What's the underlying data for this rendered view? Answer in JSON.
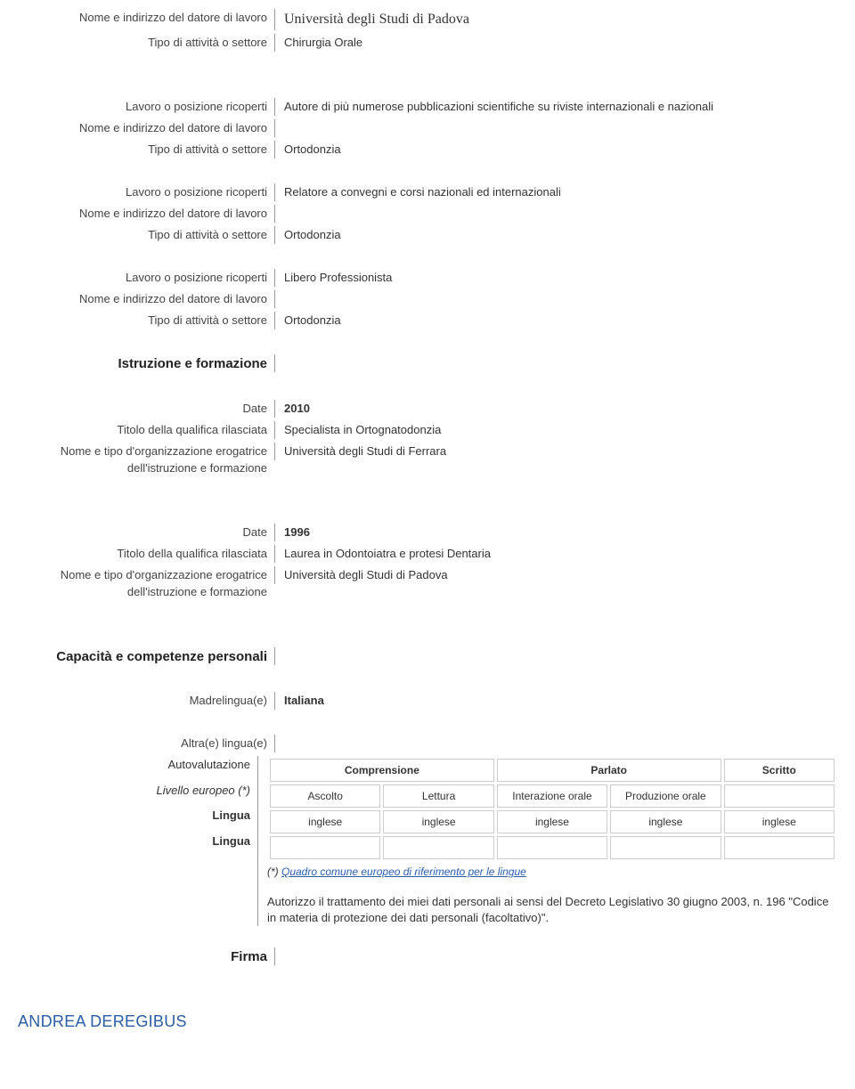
{
  "labels": {
    "employer": "Nome e indirizzo del datore di lavoro",
    "sector": "Tipo di attività o settore",
    "position": "Lavoro o posizione ricoperti",
    "education_section": "Istruzione e formazione",
    "date": "Date",
    "qual_title": "Titolo della qualifica rilasciata",
    "org": "Nome e tipo d'organizzazione erogatrice dell'istruzione e formazione",
    "skills_section": "Capacità e competenze personali",
    "mother_tongue": "Madrelingua(e)",
    "other_lang": "Altra(e) lingua(e)",
    "self_assess": "Autovalutazione",
    "eu_level": "Livello europeo (*)",
    "language": "Lingua",
    "signature": "Firma"
  },
  "top_block": {
    "employer": "Università degli Studi di Padova",
    "sector": "Chirurgia Orale"
  },
  "work": [
    {
      "position": "Autore di più numerose pubblicazioni scientifiche su riviste internazionali e nazionali",
      "employer": "",
      "sector": "Ortodonzia"
    },
    {
      "position": "Relatore a convegni e corsi nazionali ed internazionali",
      "employer": "",
      "sector": "Ortodonzia"
    },
    {
      "position": "Libero Professionista",
      "employer": "",
      "sector": "Ortodonzia"
    }
  ],
  "education": [
    {
      "date": "2010",
      "title": "Specialista in Ortognatodonzia",
      "org": "Università degli Studi di Ferrara"
    },
    {
      "date": "1996",
      "title": "Laurea in Odontoiatra e protesi Dentaria",
      "org": "Università degli Studi di  Padova"
    }
  ],
  "mother_tongue_value": "Italiana",
  "lang_table": {
    "header_groups": [
      "Comprensione",
      "Parlato",
      "Scritto"
    ],
    "sub_headers": [
      "Ascolto",
      "Lettura",
      "Interazione orale",
      "Produzione orale",
      ""
    ],
    "rows": [
      [
        "inglese",
        "inglese",
        "inglese",
        "inglese",
        "inglese"
      ],
      [
        "",
        "",
        "",
        "",
        ""
      ]
    ]
  },
  "footnote_prefix": "(*) ",
  "footnote_link": "Quadro comune europeo di riferimento per le lingue",
  "authorization": "Autorizzo il trattamento dei miei dati personali ai sensi del Decreto Legislativo 30 giugno 2003, n. 196 \"Codice in materia di protezione dei dati personali (facoltativo)\".",
  "name_footer": "ANDREA DEREGIBUS"
}
